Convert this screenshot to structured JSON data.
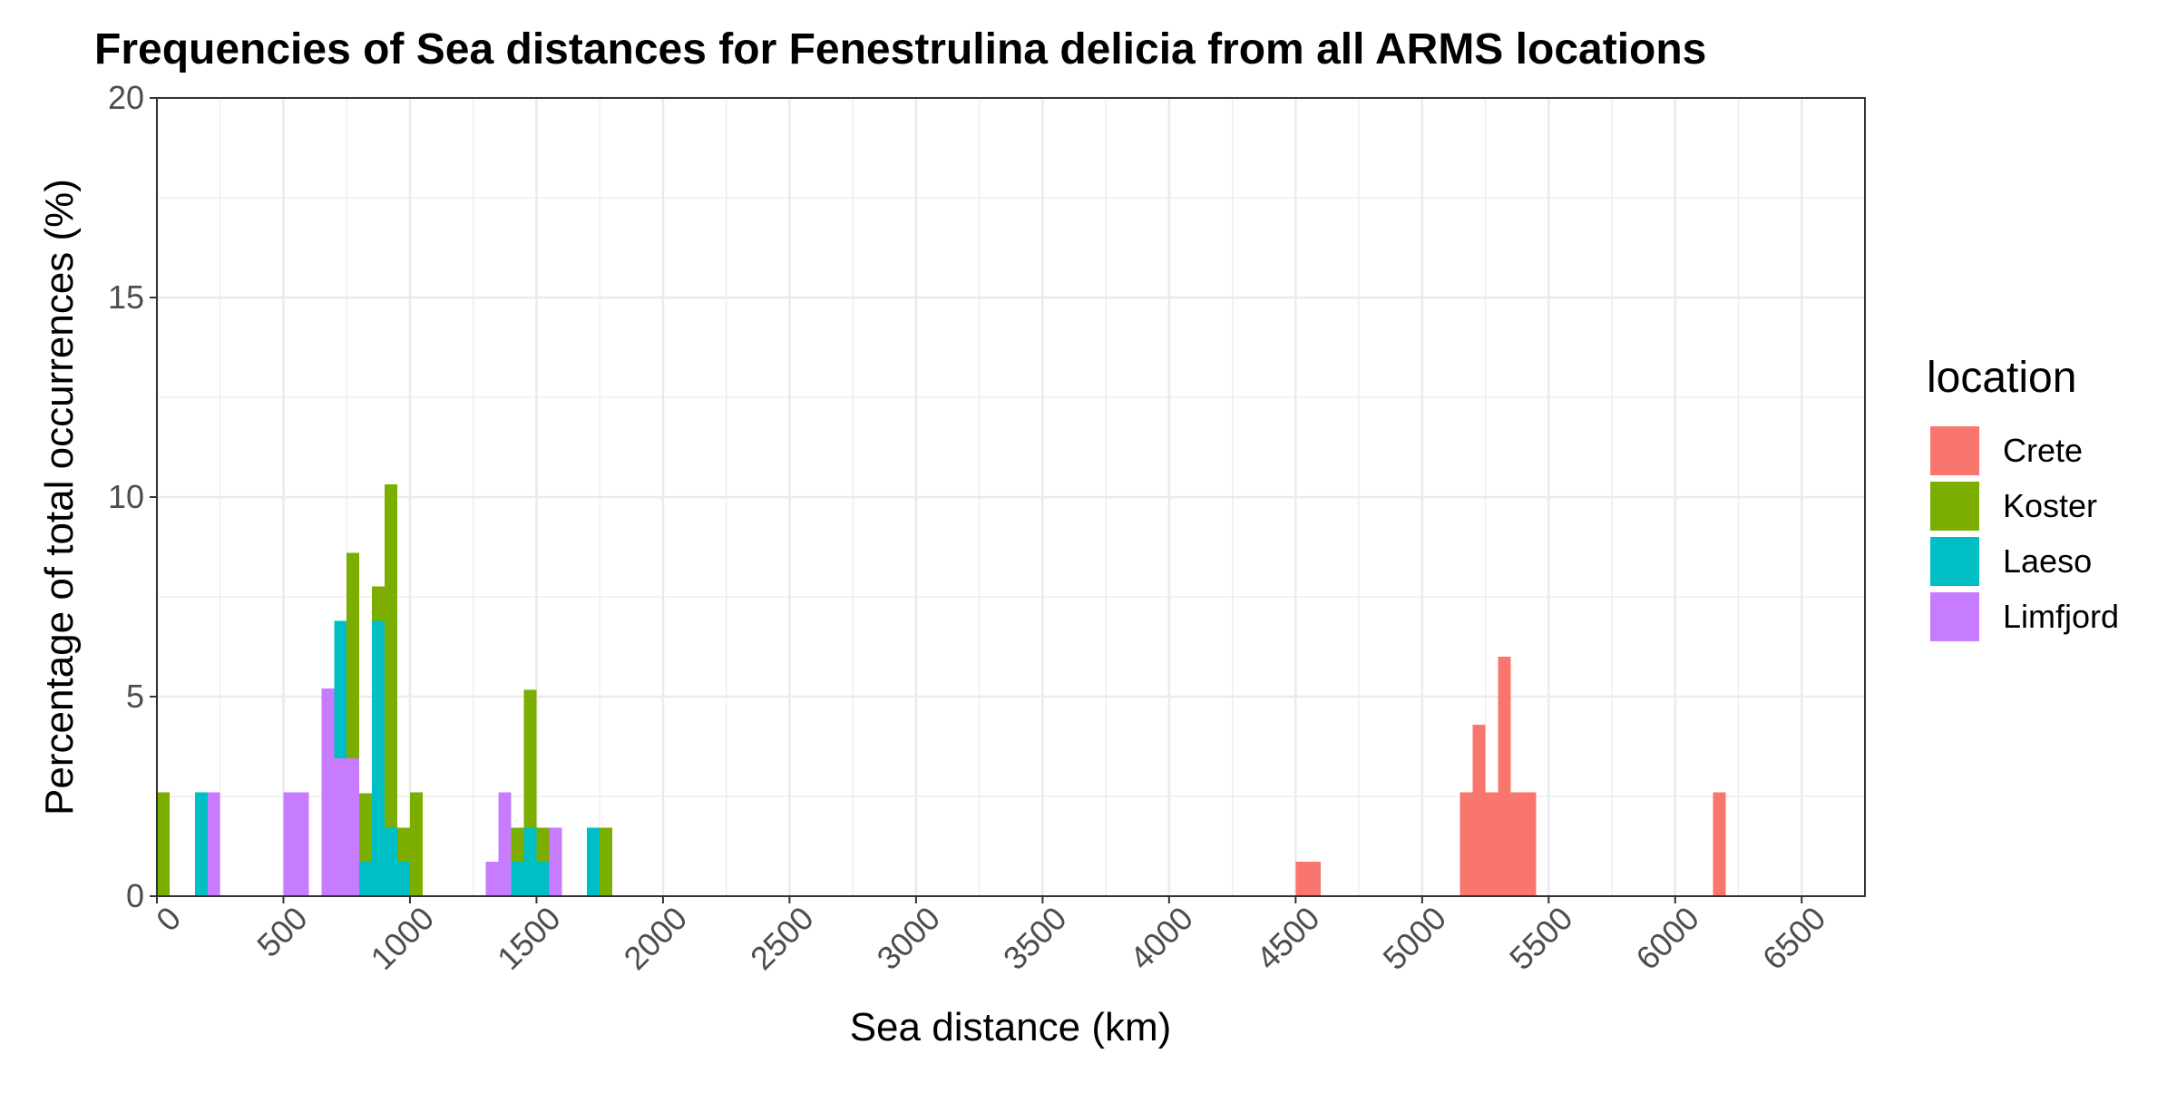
{
  "chart_data": {
    "type": "bar",
    "stacked": true,
    "title": "Frequencies of Sea distances for Fenestrulina delicia from all ARMS locations",
    "xlabel": "Sea distance (km)",
    "ylabel": "Percentage of total occurrences (%)",
    "xlim": [
      0,
      6750
    ],
    "ylim": [
      0,
      20
    ],
    "x_ticks": [
      0,
      500,
      1000,
      1500,
      2000,
      2500,
      3000,
      3500,
      4000,
      4500,
      5000,
      5500,
      6000,
      6500
    ],
    "y_ticks": [
      0,
      5,
      10,
      15,
      20
    ],
    "bin_width": 50,
    "legend": {
      "title": "location",
      "position": "right",
      "entries": [
        {
          "name": "Crete",
          "color": "#F8766D"
        },
        {
          "name": "Koster",
          "color": "#7CAE00"
        },
        {
          "name": "Laeso",
          "color": "#00BFC4"
        },
        {
          "name": "Limfjord",
          "color": "#C77CFF"
        }
      ]
    },
    "series": [
      {
        "name": "Limfjord",
        "color": "#C77CFF",
        "x": [
          200,
          500,
          550,
          650,
          700,
          750,
          1300,
          1350,
          1550
        ],
        "values": [
          2.6,
          2.6,
          2.6,
          5.2,
          3.45,
          3.45,
          0.86,
          2.6,
          1.72
        ]
      },
      {
        "name": "Laeso",
        "color": "#00BFC4",
        "x": [
          150,
          700,
          800,
          850,
          900,
          950,
          1400,
          1450,
          1500,
          1700
        ],
        "values": [
          2.6,
          3.45,
          0.86,
          6.9,
          1.72,
          0.86,
          0.86,
          1.72,
          0.86,
          1.72
        ]
      },
      {
        "name": "Koster",
        "color": "#7CAE00",
        "x": [
          0,
          750,
          800,
          850,
          900,
          950,
          1000,
          1400,
          1450,
          1500,
          1750
        ],
        "values": [
          2.6,
          5.15,
          1.72,
          0.86,
          8.6,
          0.86,
          2.6,
          0.86,
          3.45,
          0.86,
          1.72
        ]
      },
      {
        "name": "Crete",
        "color": "#F8766D",
        "x": [
          4500,
          4550,
          5150,
          5200,
          5250,
          5300,
          5350,
          5400,
          6150
        ],
        "values": [
          0.86,
          0.86,
          2.6,
          4.3,
          2.6,
          6.0,
          2.6,
          2.6,
          2.6
        ]
      }
    ]
  }
}
